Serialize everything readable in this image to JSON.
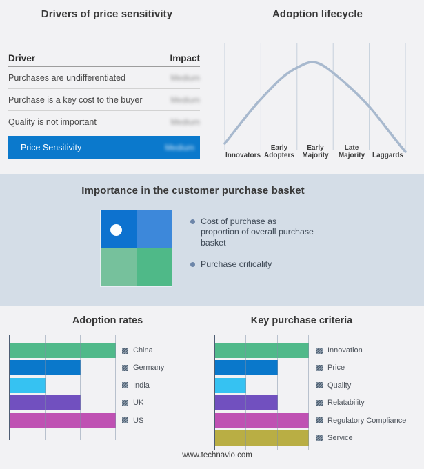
{
  "page": {
    "background": "#f2f2f4",
    "band_background": "#d4dde7",
    "footer": "www.technavio.com"
  },
  "panels": {
    "drivers": {
      "title": "Drivers of price sensitivity",
      "table": {
        "header_driver": "Driver",
        "header_impact": "Impact",
        "rows": [
          {
            "driver": "Purchases are undifferentiated",
            "impact": "Medium"
          },
          {
            "driver": "Purchase is a key cost to the buyer",
            "impact": "Medium"
          },
          {
            "driver": "Quality is not important",
            "impact": "Medium"
          }
        ],
        "highlight_row": {
          "driver": "Price Sensitivity",
          "impact": "Medium",
          "color": "#0b79cc"
        }
      }
    },
    "lifecycle": {
      "title": "Adoption lifecycle",
      "stages": [
        "Innovators",
        "Early Adopters",
        "Early Majority",
        "Late Majority",
        "Laggards"
      ],
      "curve_color": "#a8b9ce",
      "divider_color": "#c6d0dc"
    },
    "basket": {
      "title": "Importance in the customer purchase basket",
      "bullets": [
        "Cost of purchase as proportion of overall purchase basket",
        "Purchase criticality"
      ],
      "quadrant_colors": {
        "top_left": "#0d72cf",
        "top_right": "#3d88da",
        "bottom_left": "#76c19c",
        "bottom_right": "#4fb988"
      },
      "marker_color": "#fbfdfe"
    },
    "adoption_rates": {
      "title": "Adoption rates"
    },
    "purchase_criteria": {
      "title": "Key purchase criteria"
    }
  },
  "chart_data": [
    {
      "type": "line",
      "title": "Adoption lifecycle",
      "shape": "bell_curve",
      "categories": [
        "Innovators",
        "Early Adopters",
        "Early Majority",
        "Late Majority",
        "Laggards"
      ],
      "peak_stage": "Early Majority",
      "boundary_heights_norm": [
        0.08,
        0.59,
        0.94,
        0.86,
        0.5,
        0.0
      ],
      "line_color": "#a8b9ce",
      "grid": "vertical-dividers"
    },
    {
      "type": "bar",
      "title": "Adoption rates",
      "orientation": "horizontal",
      "categories": [
        "China",
        "Germany",
        "India",
        "UK",
        "US"
      ],
      "values": [
        3,
        2,
        1,
        2,
        3
      ],
      "xlim": [
        0,
        3
      ],
      "gridlines": 3,
      "colors": [
        "#50b98a",
        "#0a78cb",
        "#36c2f2",
        "#7150bf",
        "#bf51b3"
      ],
      "legend_position": "right",
      "legend_swatch_style": "hatched-gray"
    },
    {
      "type": "bar",
      "title": "Key purchase criteria",
      "orientation": "horizontal",
      "categories": [
        "Innovation",
        "Price",
        "Quality",
        "Relatability",
        "Regulatory Compliance",
        "Service"
      ],
      "values": [
        3,
        2,
        1,
        2,
        3,
        3
      ],
      "xlim": [
        0,
        3
      ],
      "gridlines": 3,
      "colors": [
        "#50b98a",
        "#0a78cb",
        "#36c2f2",
        "#7150bf",
        "#bf51b3",
        "#b9ae44"
      ],
      "legend_position": "right",
      "legend_swatch_style": "hatched-gray"
    }
  ]
}
